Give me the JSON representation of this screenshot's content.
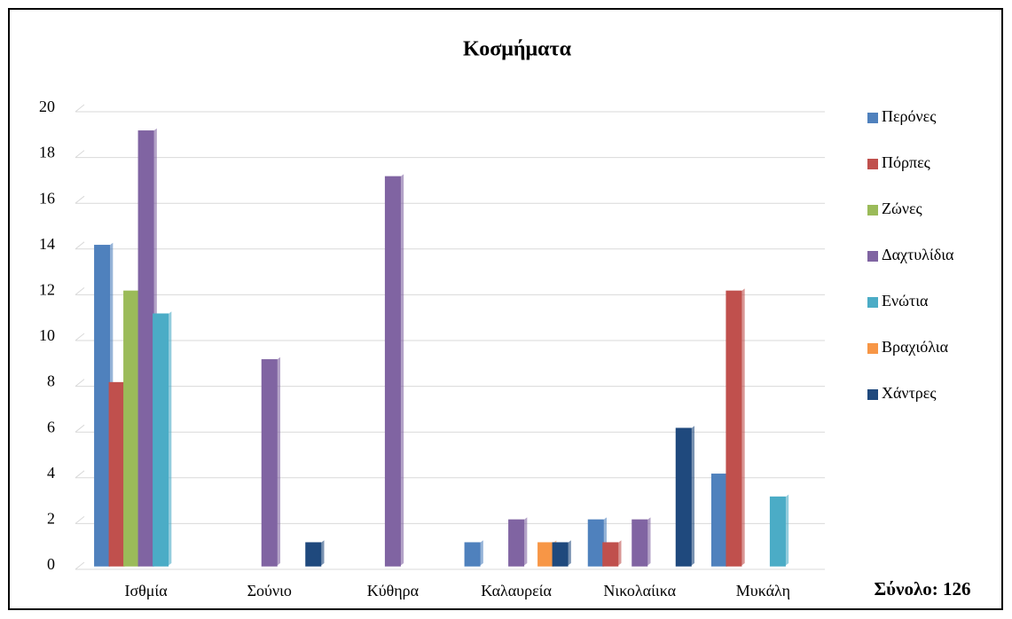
{
  "chart_data": {
    "type": "bar",
    "title": "Κοσμήματα",
    "categories": [
      "Ισθμία",
      "Σούνιο",
      "Κύθηρα",
      "Καλαυρεία",
      "Νικολαίικα",
      "Μυκάλη"
    ],
    "series": [
      {
        "name": "Περόνες",
        "color": "#4f81bd",
        "values": [
          14,
          0,
          0,
          1,
          2,
          4
        ]
      },
      {
        "name": "Πόρπες",
        "color": "#c0504d",
        "values": [
          8,
          0,
          0,
          0,
          1,
          12
        ]
      },
      {
        "name": "Ζώνες",
        "color": "#9bbb59",
        "values": [
          12,
          0,
          0,
          0,
          0,
          0
        ]
      },
      {
        "name": "Δαχτυλίδια",
        "color": "#8064a2",
        "values": [
          19,
          9,
          17,
          2,
          2,
          0
        ]
      },
      {
        "name": "Ενώτια",
        "color": "#4bacc6",
        "values": [
          11,
          0,
          0,
          0,
          0,
          3
        ]
      },
      {
        "name": "Βραχιόλια",
        "color": "#f79646",
        "values": [
          0,
          0,
          0,
          1,
          0,
          0
        ]
      },
      {
        "name": "Χάντρες",
        "color": "#1f497d",
        "values": [
          0,
          1,
          0,
          1,
          6,
          0
        ]
      }
    ],
    "ylim": [
      0,
      20
    ],
    "yticks": [
      0,
      2,
      4,
      6,
      8,
      10,
      12,
      14,
      16,
      18,
      20
    ],
    "grid": true,
    "legend": "right",
    "annotation": "Σύνολο: 126"
  }
}
